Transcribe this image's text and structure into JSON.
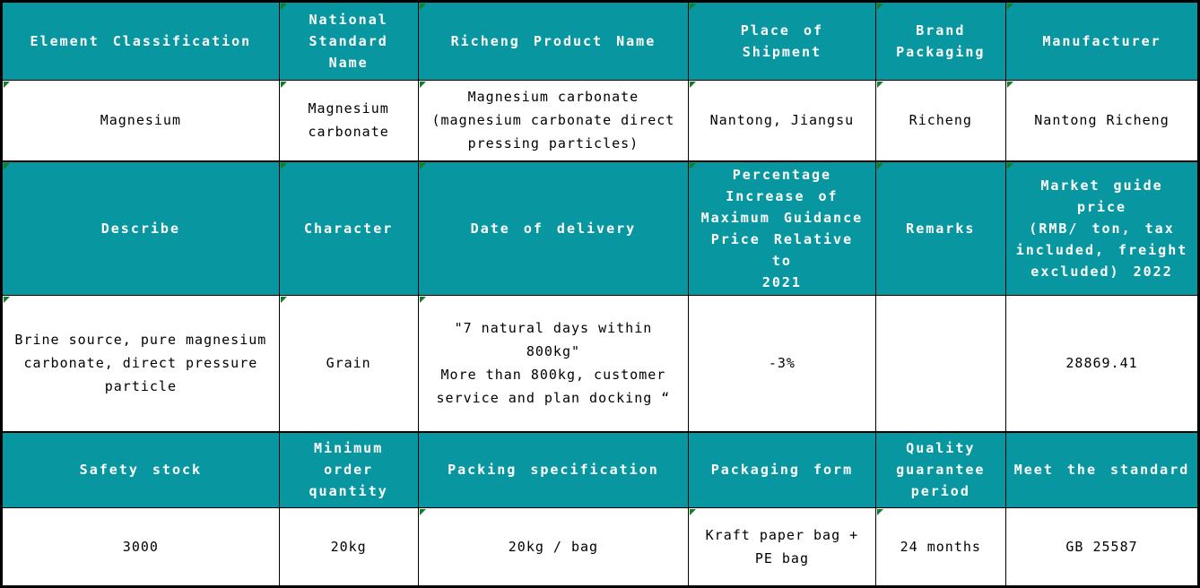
{
  "table": {
    "colors": {
      "teal": "#0897A1",
      "header_text": "#ffffff",
      "body_text": "#000000",
      "border": "#000000",
      "marker": "#118022",
      "page_bg": "#ffffff"
    },
    "corner_marker_icon": "excel-green-corner-triangle",
    "rows": [
      {
        "kind": "header",
        "cells": [
          {
            "text": "Element Classification",
            "marker": false
          },
          {
            "text": "National\nStandard Name",
            "marker": true
          },
          {
            "text": "Richeng Product Name",
            "marker": true
          },
          {
            "text": "Place of Shipment",
            "marker": true
          },
          {
            "text": "Brand\nPackaging",
            "marker": true
          },
          {
            "text": "Manufacturer",
            "marker": true
          }
        ]
      },
      {
        "kind": "data",
        "cells": [
          {
            "text": "Magnesium",
            "marker": true
          },
          {
            "text": "Magnesium\ncarbonate",
            "marker": true
          },
          {
            "text": "Magnesium carbonate\n(magnesium carbonate direct\npressing particles)",
            "marker": true
          },
          {
            "text": "Nantong, Jiangsu",
            "marker": true
          },
          {
            "text": "Richeng",
            "marker": true
          },
          {
            "text": "Nantong Richeng",
            "marker": true
          }
        ]
      },
      {
        "kind": "header",
        "cells": [
          {
            "text": "Describe",
            "marker": true
          },
          {
            "text": "Character",
            "marker": true
          },
          {
            "text": "Date of delivery",
            "marker": true
          },
          {
            "text": "Percentage\nIncrease of\nMaximum Guidance\nPrice Relative to\n2021",
            "marker": true
          },
          {
            "text": "Remarks",
            "marker": true
          },
          {
            "text": "Market guide price\n(RMB/ ton, tax\nincluded, freight\nexcluded) 2022",
            "marker": true
          }
        ]
      },
      {
        "kind": "data",
        "cells": [
          {
            "text": "Brine source, pure magnesium\ncarbonate, direct pressure\nparticle",
            "marker": true
          },
          {
            "text": "Grain",
            "marker": true
          },
          {
            "text": "\"7 natural days within 800kg\"\nMore than 800kg, customer\nservice and plan docking “",
            "marker": true
          },
          {
            "text": "-3%",
            "marker": false
          },
          {
            "text": "",
            "marker": false
          },
          {
            "text": "28869.41",
            "marker": false
          }
        ]
      },
      {
        "kind": "header",
        "cells": [
          {
            "text": "Safety stock",
            "marker": false
          },
          {
            "text": "Minimum order\nquantity",
            "marker": false
          },
          {
            "text": "Packing specification",
            "marker": false
          },
          {
            "text": "Packaging form",
            "marker": false
          },
          {
            "text": "Quality\nguarantee\nperiod",
            "marker": false
          },
          {
            "text": "Meet the standard",
            "marker": false
          }
        ]
      },
      {
        "kind": "data",
        "cells": [
          {
            "text": "3000",
            "marker": false
          },
          {
            "text": "20kg",
            "marker": false
          },
          {
            "text": "20kg / bag",
            "marker": true
          },
          {
            "text": "Kraft paper bag +\nPE bag",
            "marker": true
          },
          {
            "text": "24 months",
            "marker": true
          },
          {
            "text": "GB 25587",
            "marker": false
          }
        ]
      }
    ]
  }
}
